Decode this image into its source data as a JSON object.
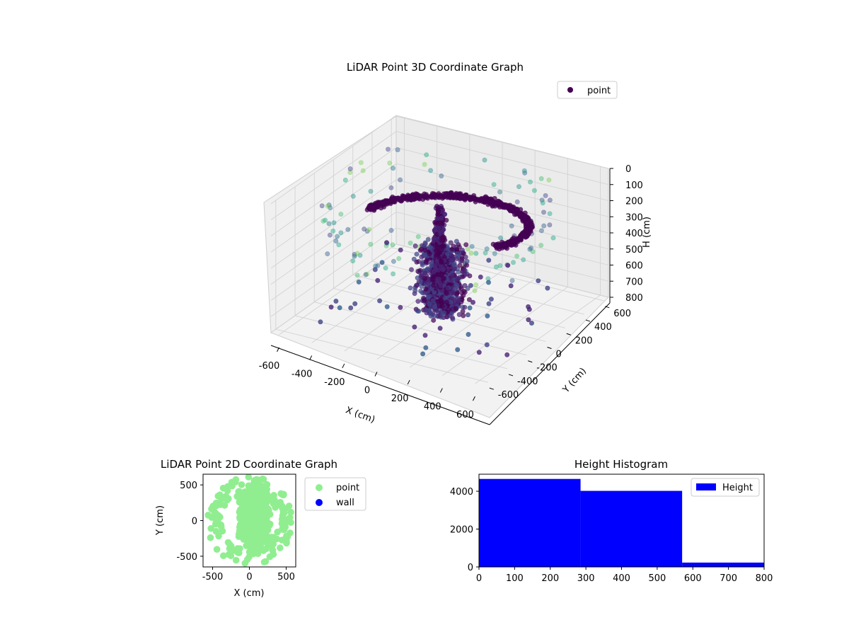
{
  "chart_data": [
    {
      "type": "scatter",
      "projection": "3d",
      "title": "LiDAR Point 3D Coordinate Graph",
      "xlabel": "X (cm)",
      "ylabel": "Y (cm)",
      "zlabel": "H (cm)",
      "xlim": [
        -650,
        650
      ],
      "ylim": [
        -650,
        650
      ],
      "zlim": [
        0,
        800
      ],
      "z_inverted": true,
      "x_ticks": [
        "-600",
        "-400",
        "-200",
        "0",
        "200",
        "400",
        "600"
      ],
      "y_ticks": [
        "-600",
        "-400",
        "-200",
        "0",
        "200",
        "400",
        "600"
      ],
      "z_ticks": [
        "0",
        "100",
        "200",
        "300",
        "400",
        "500",
        "600",
        "700",
        "800"
      ],
      "grid": true,
      "legend": {
        "placement": "top-right",
        "entries": [
          "point"
        ]
      },
      "colormap": "viridis",
      "legend_marker_color": "#440154",
      "series": [
        {
          "name": "point",
          "note_structures": [
            "ring ~300cm radius at height ~250-350",
            "column near origin",
            "corner posts"
          ]
        }
      ]
    },
    {
      "type": "scatter",
      "title": "LiDAR Point 2D Coordinate Graph",
      "xlabel": "X (cm)",
      "ylabel": "Y (cm)",
      "xlim": [
        -630,
        630
      ],
      "ylim": [
        -650,
        650
      ],
      "x_ticks": [
        "-500",
        "0",
        "500"
      ],
      "y_ticks": [
        "-500",
        "0",
        "500"
      ],
      "legend": {
        "placement": "outside-right",
        "entries": [
          "point",
          "wall"
        ]
      },
      "series": [
        {
          "name": "point",
          "color": "#90ee90"
        },
        {
          "name": "wall",
          "color": "#0000ff",
          "points": []
        }
      ]
    },
    {
      "type": "bar",
      "title": "Height Histogram",
      "xlabel": "",
      "ylabel": "",
      "xlim": [
        0,
        800
      ],
      "ylim": [
        0,
        4900
      ],
      "x_ticks": [
        "0",
        "100",
        "200",
        "300",
        "400",
        "500",
        "600",
        "700",
        "800"
      ],
      "y_ticks": [
        "0",
        "2000",
        "4000"
      ],
      "bins": [
        [
          0,
          285
        ],
        [
          285,
          570
        ],
        [
          570,
          855
        ]
      ],
      "values": [
        4650,
        4020,
        230
      ],
      "color": "#0000ff",
      "legend": {
        "placement": "top-right",
        "entries": [
          "Height"
        ]
      }
    }
  ]
}
